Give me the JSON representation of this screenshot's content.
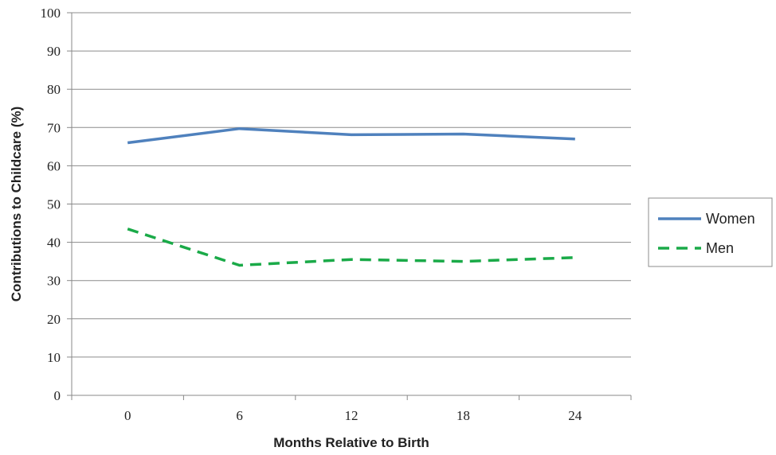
{
  "chart_data": {
    "type": "line",
    "xlabel": "Months Relative to Birth",
    "ylabel": "Contributions to Childcare (%)",
    "x": [
      0,
      6,
      12,
      18,
      24
    ],
    "ylim": [
      0,
      100
    ],
    "yticks": [
      0,
      10,
      20,
      30,
      40,
      50,
      60,
      70,
      80,
      90,
      100
    ],
    "grid": true,
    "legend_position": "right",
    "series": [
      {
        "name": "Women",
        "values": [
          66,
          69.7,
          68.1,
          68.3,
          67
        ],
        "color": "#4f81bd",
        "style": "solid"
      },
      {
        "name": "Men",
        "values": [
          43.5,
          34,
          35.5,
          35,
          36
        ],
        "color": "#1aaa48",
        "style": "dashed"
      }
    ]
  }
}
